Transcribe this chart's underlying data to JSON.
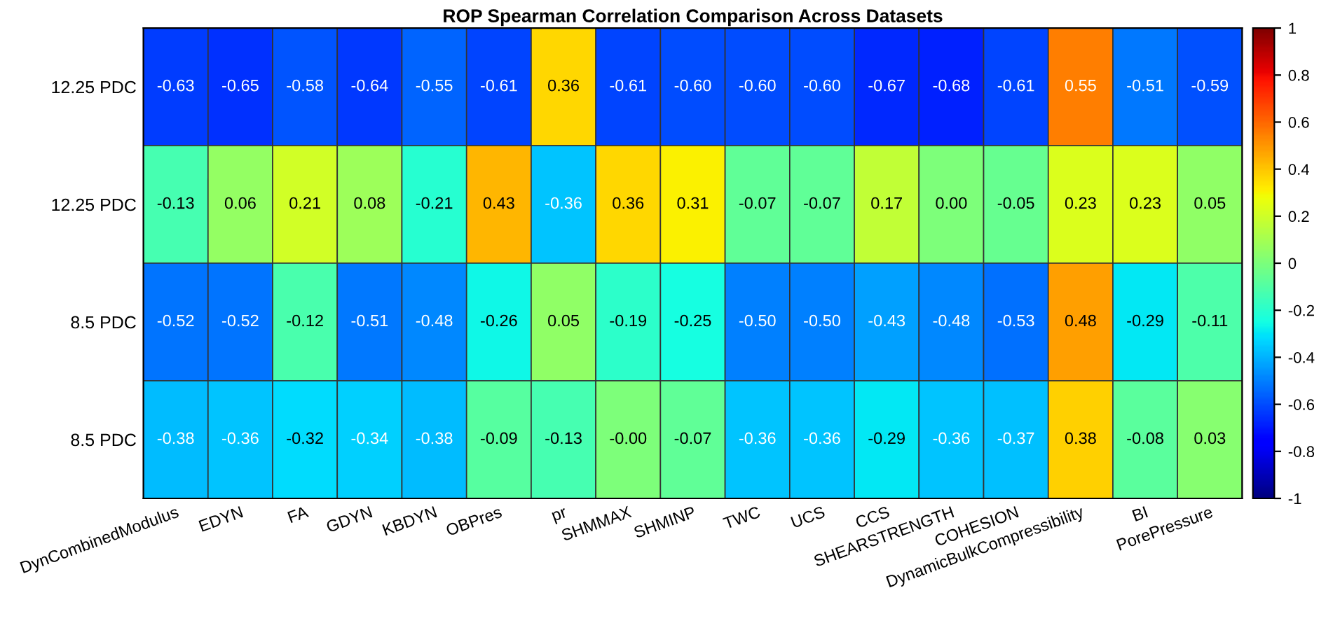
{
  "chart_data": {
    "type": "heatmap",
    "title": "ROP Spearman Correlation Comparison Across Datasets",
    "categories": [
      "DynCombinedModulus",
      "EDYN",
      "FA",
      "GDYN",
      "KBDYN",
      "OBPres",
      "pr",
      "SHMMAX",
      "SHMINP",
      "TWC",
      "UCS",
      "CCS",
      "SHEARSTRENGTH",
      "COHESION",
      "DynamicBulkCompressibility",
      "BI",
      "PorePressure"
    ],
    "y_categories": [
      "12.25 PDC",
      "12.25 PDC",
      "8.5 PDC",
      "8.5 PDC"
    ],
    "cells": [
      [
        -0.63,
        -0.65,
        -0.58,
        -0.64,
        -0.55,
        -0.61,
        0.36,
        -0.61,
        -0.6,
        -0.6,
        -0.6,
        -0.67,
        -0.68,
        -0.61,
        0.55,
        -0.51,
        -0.59
      ],
      [
        -0.13,
        0.06,
        0.21,
        0.08,
        -0.21,
        0.43,
        -0.36,
        0.36,
        0.31,
        -0.07,
        -0.07,
        0.17,
        0.0,
        -0.05,
        0.23,
        0.23,
        0.05
      ],
      [
        -0.52,
        -0.52,
        -0.12,
        -0.51,
        -0.48,
        -0.26,
        0.05,
        -0.19,
        -0.25,
        -0.5,
        -0.5,
        -0.43,
        -0.48,
        -0.53,
        0.48,
        -0.29,
        -0.11
      ],
      [
        -0.38,
        -0.36,
        -0.32,
        -0.34,
        -0.38,
        -0.09,
        -0.13,
        -0.0,
        -0.07,
        -0.36,
        -0.36,
        -0.29,
        -0.36,
        -0.37,
        0.38,
        -0.08,
        0.03
      ]
    ],
    "cell_labels": [
      [
        "-0.63",
        "-0.65",
        "-0.58",
        "-0.64",
        "-0.55",
        "-0.61",
        "0.36",
        "-0.61",
        "-0.60",
        "-0.60",
        "-0.60",
        "-0.67",
        "-0.68",
        "-0.61",
        "0.55",
        "-0.51",
        "-0.59"
      ],
      [
        "-0.13",
        "0.06",
        "0.21",
        "0.08",
        "-0.21",
        "0.43",
        "-0.36",
        "0.36",
        "0.31",
        "-0.07",
        "-0.07",
        "0.17",
        "0.00",
        "-0.05",
        "0.23",
        "0.23",
        "0.05"
      ],
      [
        "-0.52",
        "-0.52",
        "-0.12",
        "-0.51",
        "-0.48",
        "-0.26",
        "0.05",
        "-0.19",
        "-0.25",
        "-0.50",
        "-0.50",
        "-0.43",
        "-0.48",
        "-0.53",
        "0.48",
        "-0.29",
        "-0.11"
      ],
      [
        "-0.38",
        "-0.36",
        "-0.32",
        "-0.34",
        "-0.38",
        "-0.09",
        "-0.13",
        "-0.00",
        "-0.07",
        "-0.36",
        "-0.36",
        "-0.29",
        "-0.36",
        "-0.37",
        "0.38",
        "-0.08",
        "0.03"
      ]
    ],
    "clim": [
      -1,
      1
    ],
    "cticks": [
      -1,
      -0.8,
      -0.6,
      -0.4,
      -0.2,
      0,
      0.2,
      0.4,
      0.6,
      0.8,
      1
    ]
  }
}
